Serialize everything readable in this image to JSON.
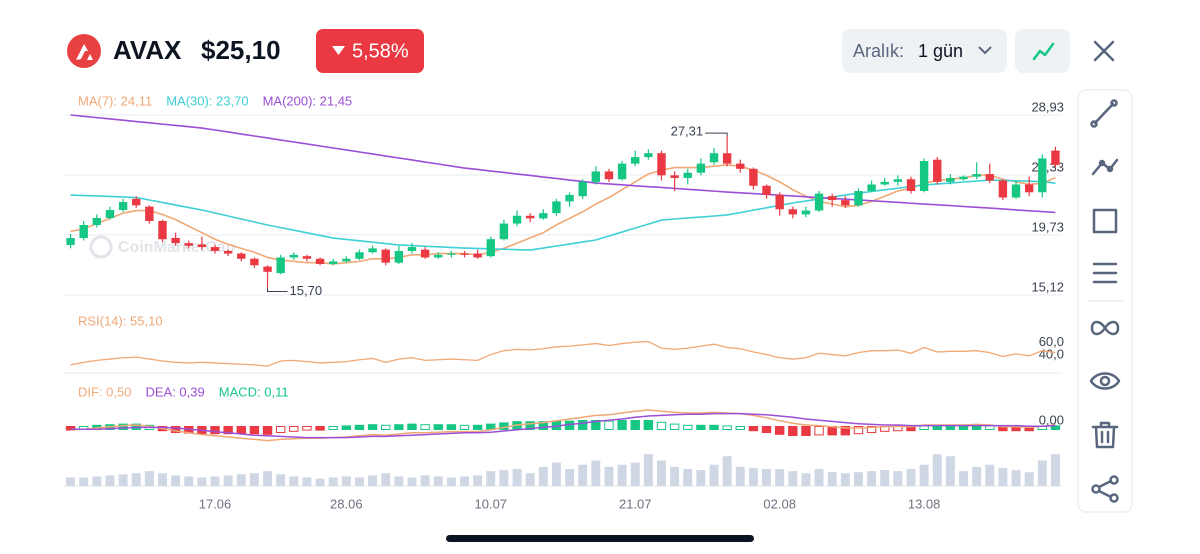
{
  "header": {
    "symbol": "AVAX",
    "price": "$25,10",
    "change": "5,58%",
    "range_label": "Aralık:",
    "range_value": "1 gün"
  },
  "watermark": "CoinMarketCap",
  "chart_data": [
    {
      "type": "candlestick",
      "categories": [
        null,
        null,
        null,
        null,
        null,
        null,
        null,
        null,
        null,
        null,
        null,
        "17.06",
        null,
        null,
        null,
        null,
        null,
        null,
        null,
        null,
        null,
        "28.06",
        null,
        null,
        null,
        null,
        null,
        null,
        null,
        null,
        null,
        null,
        "10.07",
        null,
        null,
        null,
        null,
        null,
        null,
        null,
        null,
        null,
        null,
        "21.07",
        null,
        null,
        null,
        null,
        null,
        null,
        null,
        null,
        null,
        null,
        "02.08",
        null,
        null,
        null,
        null,
        null,
        null,
        null,
        null,
        null,
        null,
        "13.08",
        null,
        null,
        null,
        null,
        null,
        null,
        null,
        null,
        null,
        null
      ],
      "open": [
        18.96,
        19.49,
        20.49,
        21.03,
        21.64,
        22.5,
        21.9,
        20.8,
        19.5,
        19.1,
        19.0,
        18.8,
        18.5,
        18.3,
        17.9,
        17.3,
        16.8,
        18.0,
        18.1,
        17.9,
        17.5,
        17.7,
        17.9,
        18.4,
        18.6,
        17.6,
        18.5,
        18.6,
        18.0,
        18.2,
        18.3,
        18.3,
        18.1,
        19.4,
        20.6,
        21.2,
        21.0,
        21.4,
        22.3,
        22.7,
        23.8,
        24.6,
        24.0,
        25.2,
        25.7,
        26.0,
        24.3,
        24.1,
        24.5,
        25.3,
        26.0,
        25.2,
        24.8,
        23.5,
        22.8,
        21.7,
        21.3,
        21.6,
        22.7,
        22.4,
        22.0,
        23.1,
        23.6,
        23.8,
        24.0,
        23.1,
        25.5,
        23.8,
        24.0,
        24.2,
        24.4,
        23.9,
        22.6,
        23.6,
        23.0,
        26.2
      ],
      "high": [
        19.8,
        20.8,
        21.3,
        21.9,
        22.5,
        22.7,
        22.0,
        20.9,
        19.9,
        19.3,
        19.6,
        19.0,
        18.6,
        18.4,
        18.0,
        17.4,
        18.2,
        18.4,
        18.2,
        18.0,
        17.9,
        18.1,
        18.6,
        18.9,
        18.7,
        18.9,
        19.1,
        18.8,
        18.4,
        18.5,
        18.5,
        18.6,
        19.6,
        20.9,
        21.6,
        21.4,
        21.7,
        22.5,
        23.0,
        24.0,
        25.0,
        24.8,
        25.4,
        26.2,
        26.3,
        26.2,
        24.6,
        24.8,
        25.6,
        26.4,
        27.31,
        25.5,
        24.9,
        23.6,
        23.0,
        21.9,
        21.9,
        23.1,
        22.9,
        22.7,
        23.3,
        23.9,
        24.1,
        24.3,
        24.2,
        25.6,
        25.7,
        24.4,
        24.3,
        25.3,
        25.2,
        24.0,
        23.9,
        24.2,
        25.9,
        26.5
      ],
      "low": [
        18.7,
        19.3,
        20.3,
        20.9,
        21.5,
        21.8,
        20.6,
        19.2,
        18.9,
        18.7,
        18.6,
        18.3,
        18.1,
        17.7,
        17.2,
        15.7,
        16.7,
        17.8,
        17.7,
        17.4,
        17.4,
        17.6,
        17.8,
        18.3,
        17.4,
        17.5,
        18.3,
        17.9,
        17.9,
        18.0,
        18.0,
        17.9,
        18.0,
        19.3,
        20.4,
        20.7,
        20.9,
        21.2,
        21.9,
        22.5,
        23.6,
        23.8,
        23.9,
        25.0,
        25.5,
        23.9,
        23.1,
        23.6,
        24.3,
        25.1,
        25.0,
        24.5,
        23.2,
        22.5,
        21.2,
        21.0,
        21.1,
        21.5,
        21.9,
        21.8,
        21.9,
        23.0,
        23.5,
        23.5,
        22.9,
        23.0,
        23.6,
        23.6,
        23.9,
        24.0,
        23.7,
        22.4,
        22.5,
        22.7,
        22.6,
        24.9
      ],
      "close": [
        19.49,
        20.49,
        21.03,
        21.64,
        22.25,
        22.0,
        20.8,
        19.4,
        19.1,
        18.9,
        18.8,
        18.5,
        18.3,
        17.9,
        17.4,
        16.9,
        18.0,
        18.2,
        17.9,
        17.5,
        17.7,
        17.9,
        18.4,
        18.7,
        17.6,
        18.5,
        18.8,
        18.0,
        18.2,
        18.3,
        18.2,
        18.0,
        19.4,
        20.6,
        21.2,
        21.0,
        21.4,
        22.3,
        22.8,
        23.8,
        24.6,
        24.0,
        25.2,
        25.7,
        26.0,
        24.3,
        24.1,
        24.5,
        25.2,
        26.0,
        25.2,
        24.8,
        23.5,
        22.8,
        21.7,
        21.3,
        21.6,
        22.9,
        22.4,
        22.0,
        23.1,
        23.6,
        23.8,
        24.0,
        23.1,
        25.4,
        23.8,
        24.1,
        24.2,
        24.4,
        23.9,
        22.6,
        23.6,
        23.0,
        25.6,
        25.1
      ],
      "up_color": "#16c784",
      "down_color": "#ea3943",
      "high_label": "27,31",
      "low_label": "15,70",
      "series": [
        {
          "name": "MA(7): 24,11",
          "color": "#f0a875",
          "values": [
            20.0,
            20.2,
            20.6,
            21.0,
            21.4,
            21.6,
            21.6,
            21.3,
            20.9,
            20.4,
            19.9,
            19.4,
            19.0,
            18.7,
            18.4,
            18.0,
            17.8,
            17.7,
            17.6,
            17.6,
            17.5,
            17.6,
            17.7,
            17.9,
            17.9,
            18.0,
            18.2,
            18.2,
            18.3,
            18.3,
            18.3,
            18.2,
            18.4,
            18.7,
            19.1,
            19.5,
            19.9,
            20.5,
            21.0,
            21.5,
            22.1,
            22.6,
            23.2,
            23.8,
            24.4,
            24.7,
            24.9,
            24.9,
            24.9,
            25.0,
            25.1,
            25.0,
            24.7,
            24.3,
            23.8,
            23.2,
            22.7,
            22.3,
            22.1,
            21.9,
            22.0,
            22.3,
            22.7,
            23.1,
            23.3,
            23.7,
            23.9,
            24.0,
            24.1,
            24.3,
            24.3,
            24.0,
            23.8,
            23.6,
            23.7,
            24.11
          ]
        },
        {
          "name": "MA(30): 23,70",
          "color": "#3fd0d6",
          "values": [
            22.79,
            22.75,
            22.72,
            22.68,
            22.64,
            22.6,
            22.41,
            22.22,
            22.02,
            21.83,
            21.64,
            21.41,
            21.18,
            20.95,
            20.72,
            20.49,
            20.29,
            20.09,
            19.89,
            19.69,
            19.49,
            19.38,
            19.28,
            19.17,
            19.07,
            18.96,
            18.91,
            18.86,
            18.82,
            18.77,
            18.72,
            18.69,
            18.66,
            18.63,
            18.6,
            18.57,
            18.72,
            18.88,
            19.03,
            19.19,
            19.34,
            19.65,
            19.95,
            20.26,
            20.56,
            20.87,
            20.95,
            21.03,
            21.1,
            21.18,
            21.26,
            21.44,
            21.63,
            21.81,
            22.0,
            22.18,
            22.33,
            22.48,
            22.64,
            22.79,
            22.94,
            23.06,
            23.19,
            23.31,
            23.44,
            23.56,
            23.64,
            23.71,
            23.79,
            23.86,
            23.94,
            23.91,
            23.88,
            23.85,
            23.82,
            23.7
          ]
        },
        {
          "name": "MA(200): 21,45",
          "color": "#9b4fd6",
          "values": [
            28.93,
            28.83,
            28.73,
            28.63,
            28.53,
            28.43,
            28.33,
            28.23,
            28.13,
            28.03,
            27.93,
            27.78,
            27.63,
            27.47,
            27.32,
            27.17,
            27.01,
            26.86,
            26.71,
            26.55,
            26.4,
            26.25,
            26.09,
            25.94,
            25.78,
            25.63,
            25.48,
            25.32,
            25.17,
            25.01,
            24.86,
            24.75,
            24.63,
            24.52,
            24.4,
            24.29,
            24.17,
            24.06,
            23.94,
            23.83,
            23.71,
            23.64,
            23.57,
            23.5,
            23.43,
            23.37,
            23.3,
            23.23,
            23.16,
            23.09,
            23.02,
            22.96,
            22.9,
            22.84,
            22.78,
            22.72,
            22.65,
            22.59,
            22.53,
            22.47,
            22.41,
            22.35,
            22.29,
            22.23,
            22.16,
            22.1,
            22.04,
            21.98,
            21.91,
            21.85,
            21.79,
            21.72,
            21.65,
            21.58,
            21.52,
            21.45
          ]
        }
      ],
      "ylim": [
        15.12,
        28.93
      ],
      "yticks": [
        {
          "value": 15.12,
          "label": "15,12"
        },
        {
          "value": 19.73,
          "label": "19,73"
        },
        {
          "value": 24.33,
          "label": "24,33"
        },
        {
          "value": 28.93,
          "label": "28,93"
        }
      ],
      "grid": true
    },
    {
      "type": "line",
      "series": [
        {
          "name": "RSI(14): 55,10",
          "color": "#f0a875",
          "values": [
            36,
            40,
            43,
            45,
            47,
            48,
            45,
            42,
            40,
            39,
            40,
            39,
            38,
            37,
            36,
            34,
            42,
            43,
            41,
            39,
            40,
            41,
            44,
            46,
            40,
            45,
            47,
            43,
            44,
            45,
            44,
            43,
            52,
            58,
            60,
            59,
            61,
            64,
            65,
            67,
            69,
            66,
            69,
            71,
            72,
            62,
            60,
            62,
            65,
            68,
            63,
            61,
            56,
            52,
            47,
            45,
            47,
            54,
            52,
            50,
            55,
            58,
            58,
            59,
            54,
            63,
            56,
            57,
            57,
            58,
            55,
            49,
            53,
            50,
            58,
            55.1
          ]
        }
      ],
      "ylim": [
        25,
        90
      ],
      "yticks": [
        {
          "value": 40,
          "label": "40,0"
        },
        {
          "value": 60,
          "label": "60,0"
        }
      ],
      "grid": false
    },
    {
      "type": "macd",
      "series": [
        {
          "name": "DIF: 0,50",
          "color": "#f0a875",
          "values": [
            -0.3,
            -0.2,
            0,
            0.2,
            0.4,
            0.5,
            0.3,
            -0.1,
            -0.5,
            -0.8,
            -1.1,
            -1.3,
            -1.5,
            -1.7,
            -1.9,
            -2.1,
            -1.9,
            -1.8,
            -1.7,
            -1.7,
            -1.6,
            -1.5,
            -1.3,
            -1.1,
            -1.2,
            -1.0,
            -0.8,
            -0.8,
            -0.7,
            -0.6,
            -0.6,
            -0.6,
            -0.3,
            0.1,
            0.5,
            0.7,
            0.9,
            1.2,
            1.5,
            1.8,
            2.1,
            2.2,
            2.5,
            2.8,
            3.0,
            2.8,
            2.6,
            2.5,
            2.5,
            2.6,
            2.5,
            2.4,
            2.1,
            1.7,
            1.2,
            0.8,
            0.5,
            0.4,
            0.2,
            0,
            0,
            0.1,
            0.2,
            0.3,
            0.2,
            0.5,
            0.5,
            0.5,
            0.5,
            0.6,
            0.5,
            0.2,
            0.2,
            0.1,
            0.3,
            0.5
          ]
        },
        {
          "name": "DEA: 0,39",
          "color": "#9b4fd6",
          "values": [
            -0.2,
            -0.2,
            -0.2,
            -0.1,
            0,
            0.1,
            0.1,
            0.1,
            0,
            -0.2,
            -0.4,
            -0.6,
            -0.8,
            -1.0,
            -1.2,
            -1.3,
            -1.4,
            -1.5,
            -1.6,
            -1.6,
            -1.6,
            -1.6,
            -1.5,
            -1.4,
            -1.4,
            -1.3,
            -1.2,
            -1.1,
            -1.0,
            -0.9,
            -0.8,
            -0.8,
            -0.7,
            -0.5,
            -0.3,
            -0.1,
            0.1,
            0.3,
            0.6,
            0.8,
            1.1,
            1.3,
            1.5,
            1.8,
            2.0,
            2.1,
            2.2,
            2.3,
            2.3,
            2.4,
            2.4,
            2.4,
            2.3,
            2.2,
            2.0,
            1.8,
            1.5,
            1.3,
            1.1,
            0.9,
            0.7,
            0.6,
            0.5,
            0.5,
            0.4,
            0.4,
            0.4,
            0.4,
            0.4,
            0.4,
            0.4,
            0.4,
            0.4,
            0.3,
            0.3,
            0.39
          ]
        },
        {
          "name": "MACD: 0,11",
          "color": "#16c784",
          "down_color": "#ea3943",
          "values": [
            -0.1,
            0,
            0.2,
            0.3,
            0.4,
            0.4,
            0.2,
            -0.2,
            -0.5,
            -0.6,
            -0.7,
            -0.7,
            -0.7,
            -0.7,
            -0.7,
            -0.8,
            -0.5,
            -0.3,
            -0.1,
            -0.1,
            0,
            0.1,
            0.2,
            0.3,
            0.2,
            0.3,
            0.4,
            0.3,
            0.3,
            0.3,
            0.2,
            0.2,
            0.4,
            0.6,
            0.8,
            0.8,
            0.8,
            0.9,
            0.9,
            1.0,
            1.0,
            0.9,
            1.0,
            1.0,
            1.0,
            0.7,
            0.4,
            0.2,
            0.2,
            0.2,
            0.1,
            0,
            -0.2,
            -0.5,
            -0.8,
            -1.0,
            -1.0,
            -0.9,
            -0.9,
            -0.9,
            -0.7,
            -0.5,
            -0.3,
            -0.2,
            -0.2,
            0.1,
            0.1,
            0.1,
            0.1,
            0.2,
            0.1,
            -0.2,
            -0.2,
            -0.2,
            0,
            0.11
          ]
        }
      ],
      "ylim": [
        -3,
        4
      ],
      "yticks": [
        {
          "value": 0,
          "label": "0,00"
        }
      ],
      "grid": false
    },
    {
      "type": "bar",
      "color": "#cfd6e4",
      "values": [
        8,
        8,
        9,
        10,
        11,
        12,
        14,
        12,
        10,
        9,
        8,
        9,
        10,
        11,
        12,
        14,
        11,
        9,
        8,
        7,
        8,
        9,
        8,
        10,
        12,
        9,
        8,
        10,
        9,
        8,
        9,
        10,
        14,
        15,
        16,
        12,
        18,
        22,
        16,
        20,
        24,
        18,
        20,
        22,
        30,
        24,
        18,
        16,
        15,
        20,
        28,
        18,
        17,
        16,
        16,
        14,
        12,
        16,
        13,
        12,
        13,
        14,
        15,
        14,
        16,
        20,
        30,
        28,
        14,
        18,
        20,
        17,
        15,
        13,
        24,
        30
      ],
      "ylim": [
        0,
        32
      ]
    }
  ]
}
